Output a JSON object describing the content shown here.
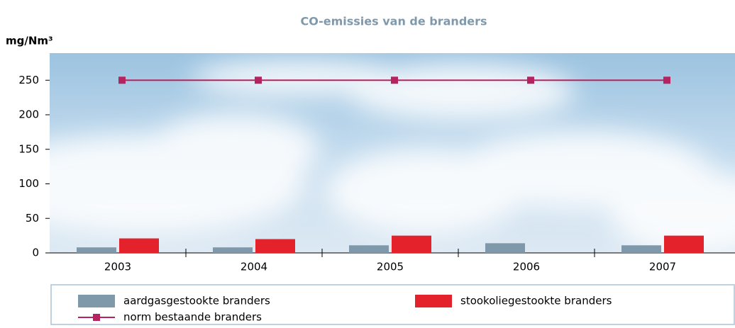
{
  "chart_data": {
    "type": "bar",
    "title": "CO-emissies van de branders",
    "y_label": "mg/Nm³",
    "categories": [
      "2003",
      "2004",
      "2005",
      "2006",
      "2007"
    ],
    "series": [
      {
        "name": "aardgasgestookte branders",
        "color": "#7f99ab",
        "type": "bar",
        "values": [
          8,
          8,
          11,
          14,
          11
        ]
      },
      {
        "name": "stookoliegestookte branders",
        "color": "#e3222b",
        "type": "bar",
        "values": [
          21,
          20,
          25,
          null,
          25
        ]
      },
      {
        "name": "norm bestaande branders",
        "color": "#b5245f",
        "type": "line",
        "values": [
          250,
          250,
          250,
          250,
          250
        ]
      }
    ],
    "ylim": [
      0,
      280
    ],
    "yticks": [
      0,
      50,
      100,
      150,
      200,
      250
    ],
    "grid": false
  }
}
